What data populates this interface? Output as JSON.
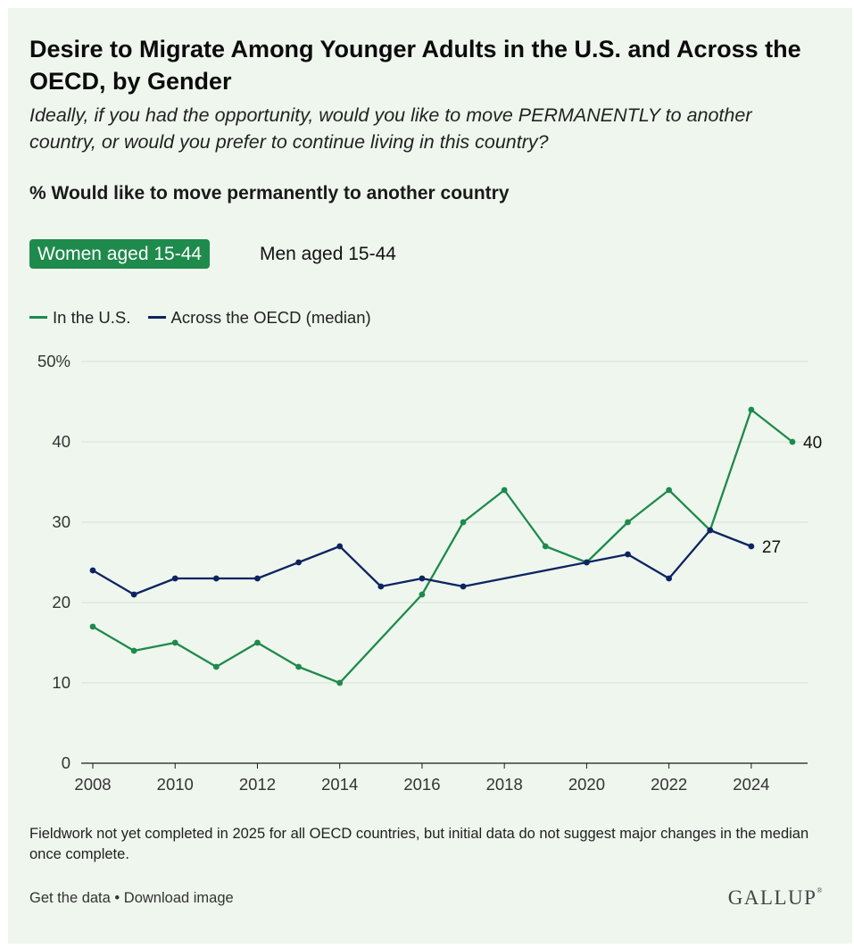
{
  "chart_data": {
    "type": "line",
    "title": "Desire to Migrate Among Younger Adults in the U.S. and Across the OECD, by Gender",
    "subtitle": "Ideally, if you had the opportunity, would you like to move PERMANENTLY to another country, or would you prefer to continue living in this country?",
    "metric_label": "% Would like to move permanently to another country",
    "tabs": [
      {
        "label": "Women aged 15-44",
        "active": true
      },
      {
        "label": "Men aged 15-44",
        "active": false
      }
    ],
    "legend_position": "top-left",
    "grid": true,
    "x": [
      2008,
      2009,
      2010,
      2011,
      2012,
      2013,
      2014,
      2015,
      2016,
      2017,
      2018,
      2019,
      2020,
      2021,
      2022,
      2023,
      2024,
      2025
    ],
    "xlim": [
      2008,
      2025
    ],
    "x_ticks": [
      2008,
      2010,
      2012,
      2014,
      2016,
      2018,
      2020,
      2022,
      2024
    ],
    "ylim": [
      0,
      50
    ],
    "y_ticks": [
      0,
      10,
      20,
      30,
      40,
      50
    ],
    "y_tick_labels": [
      "0",
      "10",
      "20",
      "30",
      "40",
      "50%"
    ],
    "series": [
      {
        "name": "In the U.S.",
        "color": "#1e8a4c",
        "points": [
          [
            2008,
            17
          ],
          [
            2009,
            14
          ],
          [
            2010,
            15
          ],
          [
            2011,
            12
          ],
          [
            2012,
            15
          ],
          [
            2013,
            12
          ],
          [
            2014,
            10
          ],
          [
            2016,
            21
          ],
          [
            2017,
            30
          ],
          [
            2018,
            34
          ],
          [
            2019,
            27
          ],
          [
            2020,
            25
          ],
          [
            2021,
            30
          ],
          [
            2022,
            34
          ],
          [
            2023,
            29
          ],
          [
            2024,
            44
          ],
          [
            2025,
            40
          ]
        ],
        "end_label": "40"
      },
      {
        "name": "Across the OECD (median)",
        "color": "#0d2461",
        "points": [
          [
            2008,
            24
          ],
          [
            2009,
            21
          ],
          [
            2010,
            23
          ],
          [
            2011,
            23
          ],
          [
            2012,
            23
          ],
          [
            2013,
            25
          ],
          [
            2014,
            27
          ],
          [
            2015,
            22
          ],
          [
            2016,
            23
          ],
          [
            2017,
            22
          ],
          [
            2020,
            25
          ],
          [
            2021,
            26
          ],
          [
            2022,
            23
          ],
          [
            2023,
            29
          ],
          [
            2024,
            27
          ]
        ],
        "end_label": "27"
      }
    ]
  },
  "footnote": "Fieldwork not yet completed in 2025 for all OECD countries, but initial data do not suggest major changes in the median once complete.",
  "links": {
    "get_data": "Get the data",
    "separator": "•",
    "download": "Download image"
  },
  "brand": {
    "logo_text": "GALLUP",
    "logo_mark": "®"
  }
}
